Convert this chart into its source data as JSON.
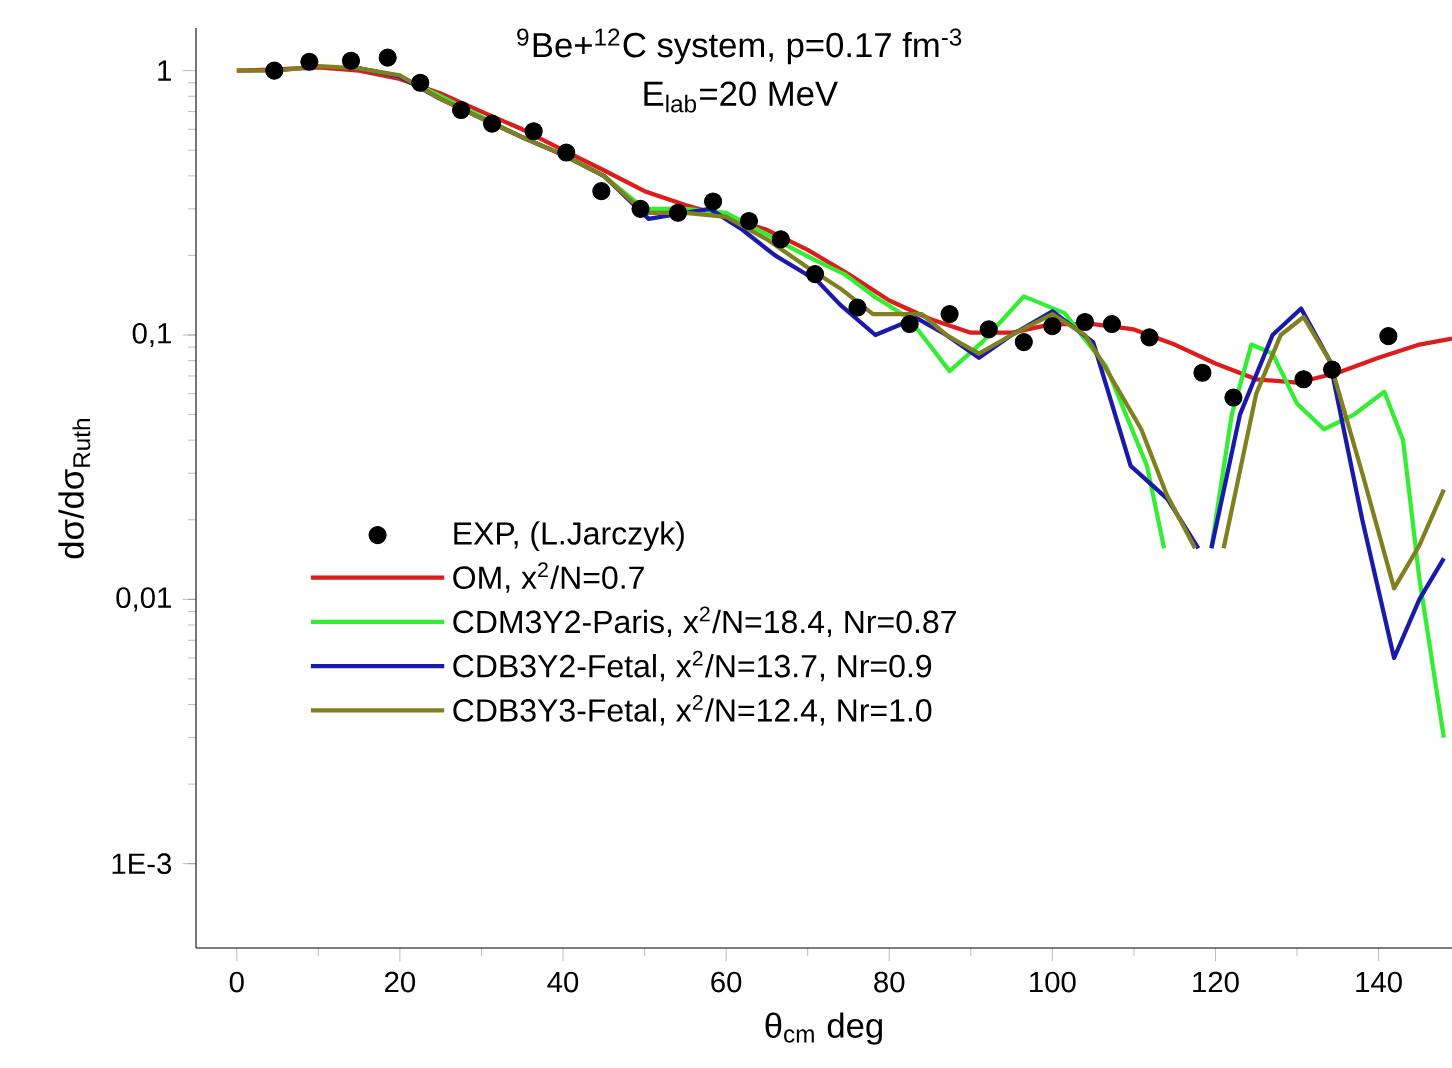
{
  "chart_data": {
    "type": "line",
    "title": "$^{9}$Be+$^{12}$C system, p=0.17 fm$^{-3}$",
    "subtitle": "E$_{lab}$=20 MeV",
    "xlabel": "θ$_{cm}$ deg",
    "ylabel": "dσ/dσ$_{Ruth}$",
    "log": "y",
    "grid": false,
    "legend": "bottom left",
    "xlim": [
      -5,
      149
    ],
    "ylim": [
      0.00048,
      1.45
    ],
    "xticks": [
      0,
      20,
      40,
      60,
      80,
      100,
      120,
      140
    ],
    "yticks": [
      {
        "value": 0.001,
        "label": "1E-3"
      },
      {
        "value": 0.01,
        "label": "0,01"
      },
      {
        "value": 0.1,
        "label": "0,1"
      },
      {
        "value": 1,
        "label": "1"
      }
    ],
    "series": [
      {
        "name": "EXP, (L.Jarczyk)",
        "type": "scatter",
        "color": "#000000",
        "x": [
          4.6,
          8.9,
          14.0,
          18.5,
          22.5,
          27.5,
          31.3,
          36.4,
          40.4,
          44.7,
          49.5,
          54.1,
          58.4,
          62.8,
          66.7,
          70.9,
          76.1,
          82.5,
          87.4,
          92.2,
          96.5,
          100.0,
          104.0,
          107.3,
          111.9,
          118.4,
          122.2,
          130.8,
          134.3,
          141.2
        ],
        "values": [
          1.0,
          1.08,
          1.09,
          1.12,
          0.9,
          0.71,
          0.63,
          0.59,
          0.49,
          0.35,
          0.3,
          0.29,
          0.32,
          0.27,
          0.23,
          0.17,
          0.127,
          0.11,
          0.12,
          0.105,
          0.094,
          0.108,
          0.112,
          0.11,
          0.098,
          0.072,
          0.058,
          0.068,
          0.074,
          0.099
        ]
      },
      {
        "name": "OM, x$^{2}$/N=0.7",
        "color": "#dd1c1c",
        "x": [
          0,
          5,
          10,
          15,
          20,
          25,
          30,
          35,
          40,
          45,
          50,
          55,
          60,
          65,
          70,
          75,
          80,
          85,
          90,
          95,
          100,
          105,
          110,
          115,
          120,
          125,
          130,
          135,
          140,
          145,
          149
        ],
        "values": [
          1.0,
          1.01,
          1.03,
          1.0,
          0.93,
          0.82,
          0.7,
          0.6,
          0.5,
          0.42,
          0.35,
          0.31,
          0.28,
          0.25,
          0.21,
          0.17,
          0.135,
          0.115,
          0.102,
          0.102,
          0.11,
          0.11,
          0.105,
          0.092,
          0.078,
          0.068,
          0.066,
          0.072,
          0.082,
          0.092,
          0.097
        ]
      },
      {
        "name": "CDM3Y2-Paris, x$^{2}$/N=18.4, Nr=0.87",
        "color": "#33ee33",
        "x": [
          15,
          20,
          25,
          30,
          35,
          40,
          45,
          50,
          55,
          60,
          65,
          67.2,
          71.2,
          74.5,
          78.3,
          82.4,
          87.4,
          91.4,
          96.5,
          101.5,
          106.6,
          111.6,
          113.7,
          116.6,
          119.5,
          122,
          124.4,
          127,
          130,
          133.3,
          137,
          140.7,
          143,
          145,
          148
        ],
        "values": [
          1.02,
          0.95,
          0.8,
          0.67,
          0.56,
          0.48,
          0.4,
          0.3,
          0.3,
          0.29,
          0.24,
          0.22,
          0.19,
          0.17,
          0.139,
          0.116,
          0.073,
          0.094,
          0.14,
          0.121,
          0.076,
          0.032,
          0.0156,
          null,
          0.0156,
          0.05,
          0.092,
          0.085,
          0.055,
          0.044,
          0.05,
          0.061,
          0.04,
          0.012,
          0.003
        ]
      },
      {
        "name": "CDB3Y2-Fetal, x$^{2}$/N=13.7, Nr=0.9",
        "color": "#1a1aaa",
        "x": [
          15,
          20,
          25,
          30,
          35,
          40,
          45,
          50.5,
          55,
          58,
          62,
          66,
          71.2,
          74,
          78.3,
          83.3,
          87,
          91,
          95,
          100,
          105,
          109.6,
          114.1,
          117.9,
          118.7,
          119.5,
          123,
          127,
          130.5,
          134,
          138,
          141.9,
          145,
          148
        ],
        "values": [
          1.02,
          0.95,
          0.78,
          0.66,
          0.56,
          0.48,
          0.4,
          0.275,
          0.29,
          0.3,
          0.25,
          0.2,
          0.16,
          0.13,
          0.1,
          0.116,
          0.1,
          0.082,
          0.1,
          0.123,
          0.094,
          0.032,
          0.024,
          0.0156,
          null,
          0.0156,
          0.05,
          0.1,
          0.126,
          0.08,
          0.02,
          0.006,
          0.01,
          0.0143
        ]
      },
      {
        "name": "CDB3Y3-Fetal, x$^{2}$/N=12.4, Nr=1.0",
        "color": "#808020",
        "x": [
          0,
          5,
          10,
          15,
          20,
          25,
          30,
          35,
          40,
          45,
          50,
          55,
          60,
          65,
          70,
          74,
          78,
          84,
          87,
          91,
          95,
          100,
          104,
          106,
          110.9,
          114,
          117.5,
          119,
          121,
          125,
          128,
          130.8,
          134,
          138,
          141.9,
          145,
          148
        ],
        "values": [
          1.0,
          1.0,
          1.04,
          1.02,
          0.96,
          0.78,
          0.66,
          0.56,
          0.48,
          0.4,
          0.29,
          0.29,
          0.28,
          0.23,
          0.18,
          0.15,
          0.12,
          0.12,
          0.1,
          0.085,
          0.1,
          0.12,
          0.1,
          0.08,
          0.044,
          0.025,
          0.0156,
          null,
          0.0156,
          0.06,
          0.1,
          0.117,
          0.08,
          0.03,
          0.011,
          0.016,
          0.026
        ]
      }
    ]
  }
}
